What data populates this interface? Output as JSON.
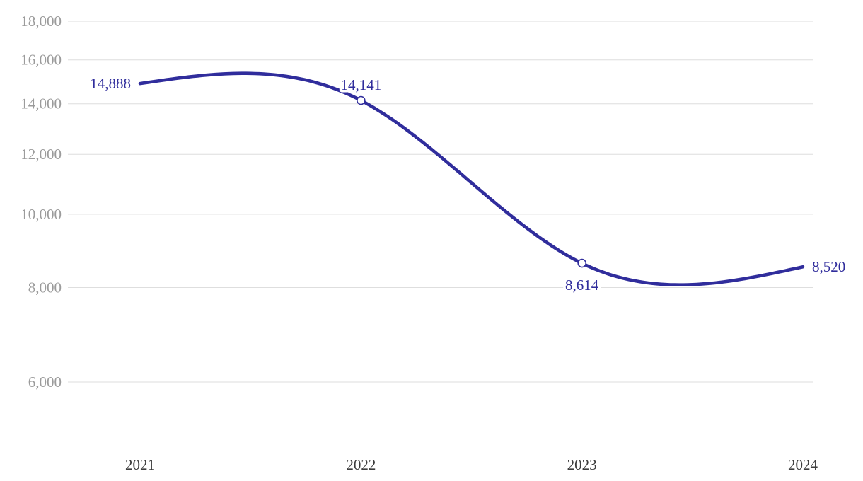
{
  "chart_data": {
    "type": "line",
    "title": "",
    "categories": [
      "2021",
      "2022",
      "2023",
      "2024"
    ],
    "series": [
      {
        "name": "value",
        "values": [
          14888,
          14141,
          8614,
          8520
        ]
      }
    ],
    "points": [
      {
        "x": "2021",
        "value": 14888,
        "label": "14,888",
        "label_position": "left",
        "marker": false
      },
      {
        "x": "2022",
        "value": 14141,
        "label": "14,141",
        "label_position": "above",
        "marker": true
      },
      {
        "x": "2023",
        "value": 8614,
        "label": "8,614",
        "label_position": "below",
        "marker": true
      },
      {
        "x": "2024",
        "value": 8520,
        "label": "8,520",
        "label_position": "right",
        "marker": false
      }
    ],
    "y_axis": {
      "scale": "log",
      "top_value": 18000,
      "bottom_value": 6000,
      "ticks": [
        {
          "value": 18000,
          "label": "18,000"
        },
        {
          "value": 16000,
          "label": "16,000"
        },
        {
          "value": 14000,
          "label": "14,000"
        },
        {
          "value": 12000,
          "label": "12,000"
        },
        {
          "value": 10000,
          "label": "10,000"
        },
        {
          "value": 8000,
          "label": "8,000"
        },
        {
          "value": 6000,
          "label": "6,000"
        }
      ]
    },
    "x_axis": {
      "tick_labels": [
        "2021",
        "2022",
        "2023",
        "2024"
      ]
    },
    "grid": true,
    "legend": "none",
    "curve": "natural-spline",
    "colors": {
      "line": "#302d9c",
      "data_labels": "#302d9c",
      "grid": "#dedede",
      "axis_labels": "#9b9b9b",
      "x_labels": "#3d3d3d",
      "background": "#ffffff",
      "marker_fill": "#ffffff"
    }
  }
}
